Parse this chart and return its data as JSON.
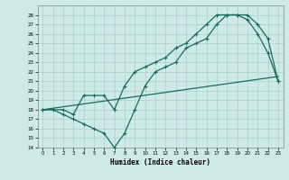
{
  "xlabel": "Humidex (Indice chaleur)",
  "background_color": "#ceeae7",
  "grid_color": "#aacfcc",
  "line_color": "#1a6b5a",
  "xlim": [
    -0.5,
    23.5
  ],
  "ylim": [
    14,
    29
  ],
  "xticks": [
    0,
    1,
    2,
    3,
    4,
    5,
    6,
    7,
    8,
    9,
    10,
    11,
    12,
    13,
    14,
    15,
    16,
    17,
    18,
    19,
    20,
    21,
    22,
    23
  ],
  "yticks": [
    14,
    15,
    16,
    17,
    18,
    19,
    20,
    21,
    22,
    23,
    24,
    25,
    26,
    27,
    28
  ],
  "line1_x": [
    0,
    1,
    2,
    3,
    4,
    5,
    6,
    7,
    8,
    9,
    10,
    11,
    12,
    13,
    14,
    15,
    16,
    17,
    18,
    19,
    20,
    21,
    22,
    23
  ],
  "line1_y": [
    18,
    18,
    17.5,
    17,
    16.5,
    16,
    15.5,
    14,
    15.5,
    18,
    20.5,
    22,
    22.5,
    23,
    24.5,
    25,
    25.5,
    27,
    28,
    28,
    27.5,
    26,
    24,
    21
  ],
  "line2_x": [
    0,
    2,
    3,
    4,
    5,
    6,
    7,
    8,
    9,
    10,
    11,
    12,
    13,
    14,
    15,
    16,
    17,
    18,
    19,
    20,
    21,
    22,
    23
  ],
  "line2_y": [
    18,
    18,
    17.5,
    19.5,
    19.5,
    19.5,
    18,
    20.5,
    22,
    22.5,
    23,
    23.5,
    24.5,
    25,
    26,
    27,
    28,
    28,
    28,
    28,
    27,
    25.5,
    21
  ],
  "line3_x": [
    0,
    23
  ],
  "line3_y": [
    18,
    21.5
  ]
}
